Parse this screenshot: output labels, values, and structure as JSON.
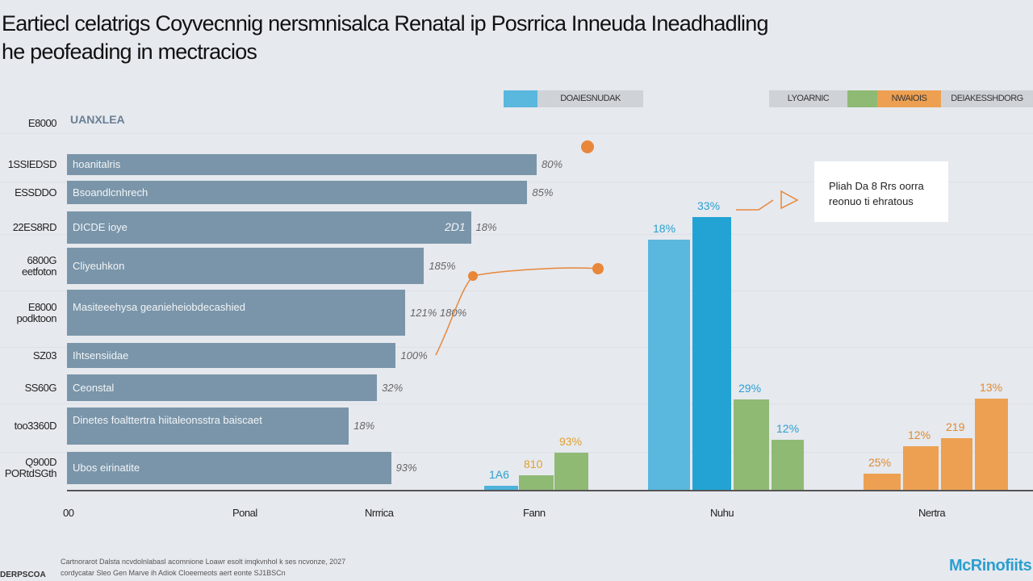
{
  "chart_data": [
    {
      "type": "bar",
      "orientation": "horizontal",
      "title": "Eartiecl celatrigs Coyvecnnig nersmnisalca Renatal ip Posrrica Inneuda Ineadhadling he peofeading in mectracios",
      "axis_label_top": "UANXLEA",
      "categories": [
        "hoanitalris",
        "Bsoandlcnhrech",
        "DICDE ioye",
        "Cliyeuhkon",
        "Masiteeehysa geanieheiobdecashied",
        "Ihtsensiidae",
        "Ceonstal",
        "Dinetes foalttertra hiitaleonsstra baiscaet",
        "Ubos eirinatite"
      ],
      "tick_labels": [
        [
          "1SSIEDSD"
        ],
        [
          "ESSDDO"
        ],
        [
          "22ES8RD"
        ],
        [
          "6800G",
          "eetfoton"
        ],
        [
          "E8000",
          "podktoon"
        ],
        [
          "SZ03"
        ],
        [
          "SS60G"
        ],
        [
          "too3360D"
        ],
        [
          "Q900D",
          "PORtdSGth"
        ]
      ],
      "values": [
        100,
        98,
        86,
        76,
        72,
        70,
        66,
        60,
        69
      ],
      "value_labels": [
        "80%",
        "85%",
        "18%",
        "185%",
        "121% 180%",
        "100%",
        "32%",
        "18%",
        "93%"
      ],
      "inner_value_label": "2D1",
      "x_ticks": [
        "00",
        "Ponal",
        "Nrrrica"
      ]
    },
    {
      "type": "bar",
      "orientation": "vertical",
      "categories": [
        "Fann",
        "Nuhu",
        "Nertra"
      ],
      "groups": [
        {
          "bars": [
            {
              "value": 1.5,
              "color": "#4db3dc",
              "label": "1A6"
            },
            {
              "value": 5.3,
              "color": "#8fba74",
              "label": "810"
            },
            {
              "value": 13.6,
              "color": "#8fba74",
              "label": "93%"
            }
          ]
        },
        {
          "bars": [
            {
              "value": 91.4,
              "color": "#5ab7de",
              "label": "18%"
            },
            {
              "value": 99.7,
              "color": "#22a3d4",
              "label": "33%"
            },
            {
              "value": 33,
              "color": "#8fba74",
              "label": "29%"
            },
            {
              "value": 18.3,
              "color": "#8fba74",
              "label": "12%"
            }
          ]
        },
        {
          "bars": [
            {
              "value": 5.9,
              "color": "#eda052",
              "label": "25%"
            },
            {
              "value": 15.9,
              "color": "#eda052",
              "label": "12%"
            },
            {
              "value": 18.9,
              "color": "#eda052",
              "label": "219"
            },
            {
              "value": 33.3,
              "color": "#eda052",
              "label": "13%"
            }
          ]
        }
      ],
      "ylim": [
        0,
        100
      ]
    }
  ],
  "legend": {
    "left": {
      "label": "DOAIESNUDAK",
      "color": "#5ab7de"
    },
    "right": [
      {
        "label": "LYOARNIC",
        "color": "#cfd3d8"
      },
      {
        "label": "",
        "color": "#8fba74"
      },
      {
        "label": "NWAIOIS",
        "color": "#eda052"
      },
      {
        "label": "DEIAKESSHDORG",
        "color": "#cfd3d8"
      }
    ]
  },
  "callout": {
    "line1": "Pliah Da 8 Rrs oorra",
    "line2": "reonuo ti ehratous"
  },
  "footer": {
    "source_label": "DERPSCOA",
    "line1": "Cartnorarot Dalsta ncvdolnlabasl acomnione Loawr esolt imqkvnhol k ses ncvonze, 2027",
    "line2": "cordycatar Sleo Gen Marve ih Adiok Cloeemeots aert eonte SJ1BSCn",
    "logo": "McRinofiits"
  },
  "colors": {
    "hbar": "#7a95a9",
    "annotation": "#e8873a"
  }
}
